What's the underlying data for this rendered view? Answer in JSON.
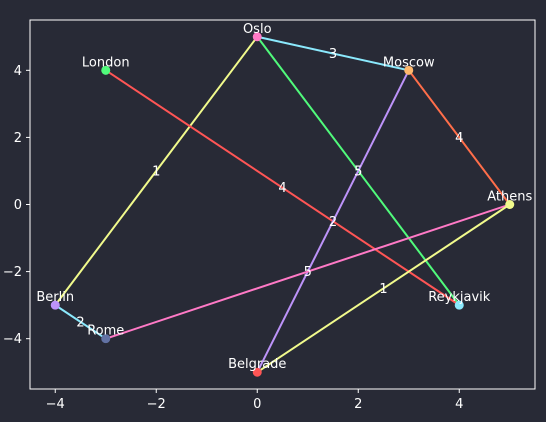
{
  "chart_data": {
    "type": "graph",
    "xlim": [
      -4.5,
      5.5
    ],
    "ylim": [
      -5.5,
      5.5
    ],
    "x_ticks": [
      -4,
      -2,
      0,
      2,
      4
    ],
    "y_ticks": [
      -4,
      -2,
      0,
      2,
      4
    ],
    "grid": false,
    "background": "#282a36",
    "axis_color": "#ffffff",
    "nodes": [
      {
        "id": "Oslo",
        "label": "Oslo",
        "x": 0,
        "y": 5,
        "color": "#ff79c6"
      },
      {
        "id": "London",
        "label": "London",
        "x": -3,
        "y": 4,
        "color": "#50fa7b"
      },
      {
        "id": "Moscow",
        "label": "Moscow",
        "x": 3,
        "y": 4,
        "color": "#ffb86c"
      },
      {
        "id": "Athens",
        "label": "Athens",
        "x": 5,
        "y": 0,
        "color": "#f1fa8c"
      },
      {
        "id": "Berlin",
        "label": "Berlin",
        "x": -4,
        "y": -3,
        "color": "#bd93f9"
      },
      {
        "id": "Reykjavik",
        "label": "Reykjavik",
        "x": 4,
        "y": -3,
        "color": "#8be9fd"
      },
      {
        "id": "Rome",
        "label": "Rome",
        "x": -3,
        "y": -4,
        "color": "#6272a4"
      },
      {
        "id": "Belgrade",
        "label": "Belgrade",
        "x": 0,
        "y": -5,
        "color": "#ff5555"
      }
    ],
    "edges": [
      {
        "source": "Oslo",
        "target": "Moscow",
        "weight": "3",
        "color": "#8be9fd"
      },
      {
        "source": "Oslo",
        "target": "Berlin",
        "weight": "1",
        "color": "#f1fa8c"
      },
      {
        "source": "Oslo",
        "target": "Reykjavik",
        "weight": "5",
        "color": "#50fa7b"
      },
      {
        "source": "London",
        "target": "Reykjavik",
        "weight": "4",
        "color": "#ff5555"
      },
      {
        "source": "Moscow",
        "target": "Athens",
        "weight": "4",
        "color": "#ff6e4a"
      },
      {
        "source": "Moscow",
        "target": "Belgrade",
        "weight": "2",
        "color": "#bd93f9"
      },
      {
        "source": "Athens",
        "target": "Rome",
        "weight": "5",
        "color": "#ff79c6"
      },
      {
        "source": "Athens",
        "target": "Belgrade",
        "weight": "1",
        "color": "#f1fa8c"
      },
      {
        "source": "Berlin",
        "target": "Rome",
        "weight": "2",
        "color": "#8be9fd"
      }
    ]
  }
}
